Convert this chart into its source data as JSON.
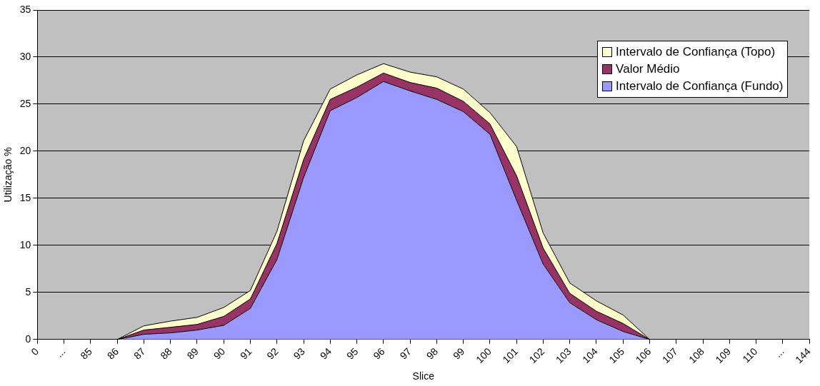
{
  "chart_data": {
    "type": "area",
    "stacked": true,
    "xlabel": "Slice",
    "ylabel": "Utilização %",
    "categories": [
      "0",
      "...",
      "85",
      "86",
      "87",
      "88",
      "89",
      "90",
      "91",
      "92",
      "93",
      "94",
      "95",
      "96",
      "97",
      "98",
      "99",
      "100",
      "101",
      "102",
      "103",
      "104",
      "105",
      "106",
      "107",
      "108",
      "109",
      "110",
      "...",
      "144"
    ],
    "series": [
      {
        "name": "Intervalo de Confiança (Fundo)",
        "color": "#9999ff",
        "values": [
          0,
          0,
          0,
          0,
          0.55,
          0.7,
          1.0,
          1.5,
          3.3,
          8.5,
          17.2,
          24.3,
          25.7,
          27.4,
          26.4,
          25.5,
          24.2,
          21.8,
          14.8,
          8.0,
          3.9,
          2.1,
          0.85,
          0,
          0,
          0,
          0,
          0,
          0,
          0
        ]
      },
      {
        "name": "Valor Médio",
        "color": "#993366",
        "values": [
          0,
          0,
          0,
          0,
          0.45,
          0.6,
          0.6,
          0.95,
          1.0,
          1.7,
          1.9,
          1.2,
          1.1,
          0.9,
          0.9,
          1.2,
          1.1,
          1.1,
          2.6,
          1.7,
          1.0,
          0.9,
          0.85,
          0,
          0,
          0,
          0,
          0,
          0,
          0
        ]
      },
      {
        "name": "Intervalo de Confiança (Topo)",
        "color": "#ffffcc",
        "values": [
          0,
          0,
          0,
          0,
          0.45,
          0.65,
          0.75,
          0.95,
          0.9,
          1.3,
          2.0,
          1.1,
          1.3,
          1.0,
          1.1,
          1.2,
          1.3,
          1.2,
          3.1,
          1.6,
          1.1,
          1.1,
          0.9,
          0,
          0,
          0,
          0,
          0,
          0,
          0
        ]
      }
    ],
    "ylim": [
      0,
      35
    ],
    "yticks": [
      0,
      5,
      10,
      15,
      20,
      25,
      30,
      35
    ],
    "grid": "y",
    "legend": "top right"
  }
}
